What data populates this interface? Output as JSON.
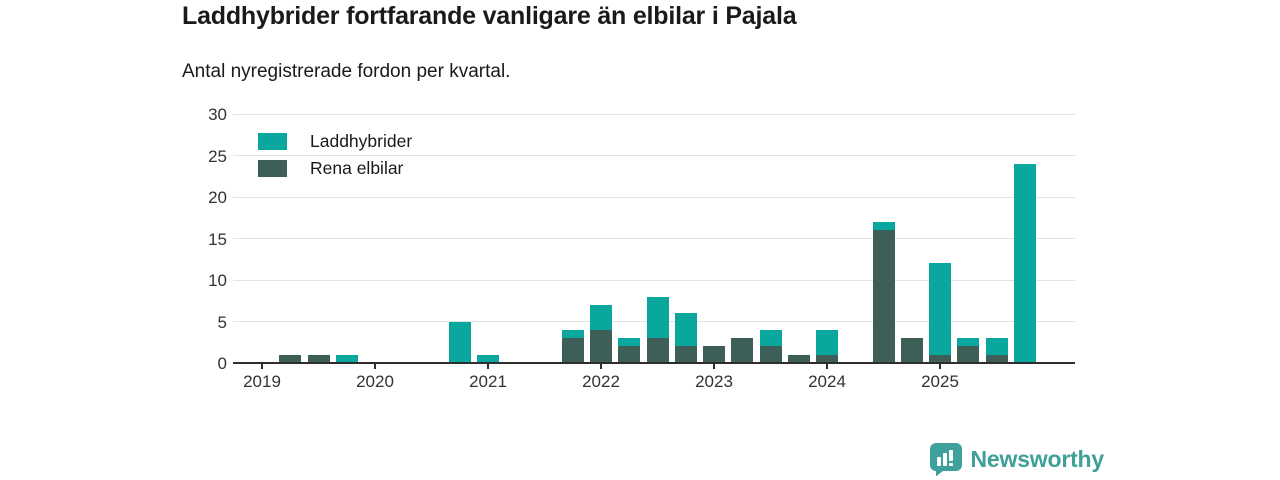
{
  "title": "Laddhybrider fortfarande vanligare än elbilar i Pajala",
  "subtitle": "Antal nyregistrerade fordon per kvartal.",
  "colors": {
    "laddhybrider": "#0aa79e",
    "rena_elbilar": "#3e5f58",
    "gridline": "#e2e2e2",
    "axis": "#2e2e2e",
    "brand": "#3f9f99"
  },
  "legend": {
    "items": [
      {
        "label": "Laddhybrider",
        "color": "#0aa79e"
      },
      {
        "label": "Rena elbilar",
        "color": "#3e5f58"
      }
    ]
  },
  "chart_data": {
    "type": "bar",
    "stacked": true,
    "title": "Laddhybrider fortfarande vanligare än elbilar i Pajala",
    "subtitle": "Antal nyregistrerade fordon per kvartal.",
    "categories": [
      "2019-Q1",
      "2019-Q2",
      "2019-Q3",
      "2019-Q4",
      "2020-Q1",
      "2020-Q2",
      "2020-Q3",
      "2020-Q4",
      "2021-Q1",
      "2021-Q2",
      "2021-Q3",
      "2021-Q4",
      "2022-Q1",
      "2022-Q2",
      "2022-Q3",
      "2022-Q4",
      "2023-Q1",
      "2023-Q2",
      "2023-Q3",
      "2023-Q4",
      "2024-Q1",
      "2024-Q2",
      "2024-Q3",
      "2024-Q4",
      "2025-Q1",
      "2025-Q2",
      "2025-Q3",
      "2025-Q4"
    ],
    "series": [
      {
        "name": "Rena elbilar",
        "color": "#3e5f58",
        "values": [
          0,
          1,
          1,
          0,
          0,
          0,
          0,
          0,
          0,
          0,
          0,
          3,
          4,
          2,
          3,
          2,
          2,
          3,
          2,
          1,
          1,
          0,
          16,
          3,
          1,
          2,
          1,
          0
        ]
      },
      {
        "name": "Laddhybrider",
        "color": "#0aa79e",
        "values": [
          0,
          0,
          0,
          1,
          0,
          0,
          0,
          5,
          1,
          0,
          0,
          1,
          3,
          1,
          5,
          4,
          0,
          0,
          2,
          0,
          3,
          0,
          1,
          0,
          11,
          1,
          2,
          24
        ]
      }
    ],
    "x_tick_labels": [
      "2019",
      "2020",
      "2021",
      "2022",
      "2023",
      "2024",
      "2025"
    ],
    "x_tick_indices": [
      0,
      4,
      8,
      12,
      16,
      20,
      24
    ],
    "yticks": [
      0,
      5,
      10,
      15,
      20,
      25,
      30
    ],
    "ylim": [
      0,
      30
    ],
    "xlabel": "",
    "ylabel": "",
    "grid": true,
    "legend_position": "top-left"
  },
  "footer": {
    "brand": "Newsworthy",
    "logo_icon": "bar-chart-pin-icon"
  }
}
